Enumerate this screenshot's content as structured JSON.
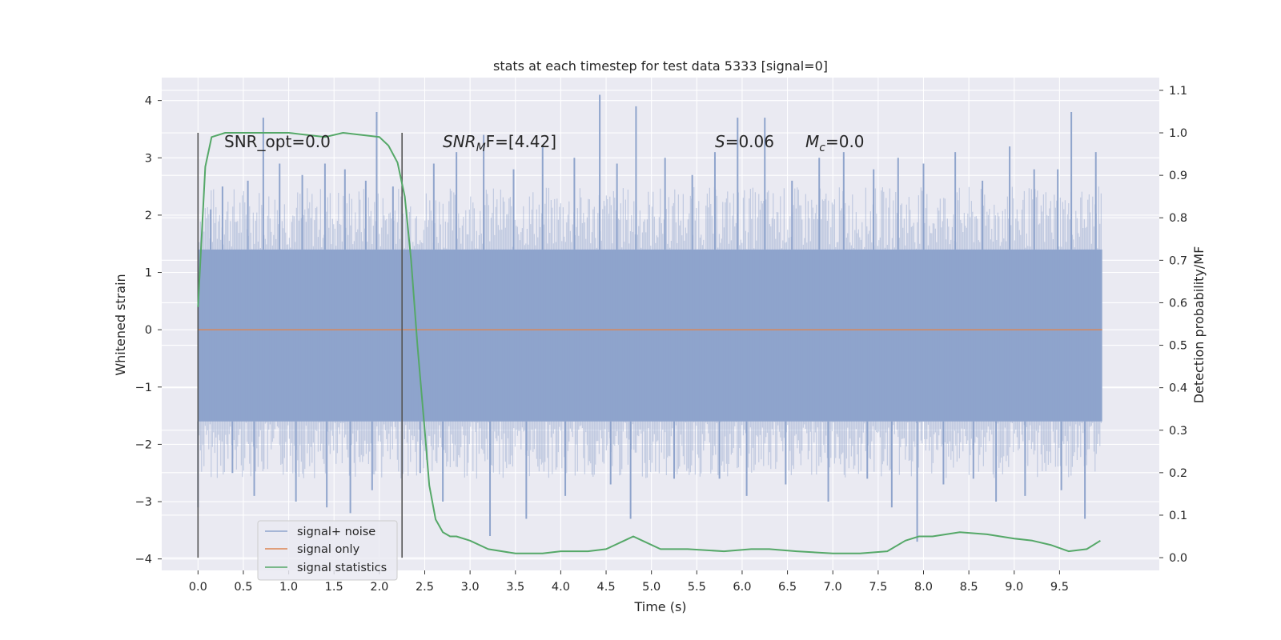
{
  "chart_data": {
    "type": "line",
    "title": "stats at each timestep for test data 5333 [signal=0]",
    "xlabel": "Time (s)",
    "ylabel": "Whitened strain",
    "y2label": "Detection probability/MF",
    "xlim": [
      -0.4,
      10.6
    ],
    "ylim": [
      -4.2,
      4.4
    ],
    "y2lim": [
      -0.03,
      1.13
    ],
    "x_ticks": [
      "0.0",
      "0.5",
      "1.0",
      "1.5",
      "2.0",
      "2.5",
      "3.0",
      "3.5",
      "4.0",
      "4.5",
      "5.0",
      "5.5",
      "6.0",
      "6.5",
      "7.0",
      "7.5",
      "8.0",
      "8.5",
      "9.0",
      "9.5"
    ],
    "y_ticks": [
      "4",
      "3",
      "2",
      "1",
      "0",
      "−1",
      "−2",
      "−3",
      "−4"
    ],
    "y2_ticks": [
      "1.1",
      "1.0",
      "0.9",
      "0.8",
      "0.7",
      "0.6",
      "0.5",
      "0.4",
      "0.3",
      "0.2",
      "0.1",
      "0.0"
    ],
    "grid": true,
    "background": "#eaeaf2",
    "legend_position": "lower-left",
    "annotations": {
      "snr_opt": "SNR_opt=0.0",
      "snr_mf_main": "SNR",
      "snr_mf_sub": "M",
      "snr_mf_rest": "F=[4.42]",
      "s_var": "S",
      "s_value": "=0.06",
      "mc_main": "M",
      "mc_sub": "c",
      "mc_value": "=0.0"
    },
    "vertical_markers_x": [
      0.0,
      2.25
    ],
    "series": [
      {
        "name": "signal+ noise",
        "color": "#8fa4cc",
        "axis": "left",
        "kind": "noise-band",
        "x_range": [
          0.0,
          9.97
        ],
        "band_low": -1.6,
        "band_high": 1.4,
        "spikes": [
          {
            "x": 0.14,
            "y": 2.1
          },
          {
            "x": 0.27,
            "y": 2.5
          },
          {
            "x": 0.55,
            "y": 2.6
          },
          {
            "x": 0.72,
            "y": 3.7
          },
          {
            "x": 0.9,
            "y": 2.9
          },
          {
            "x": 1.15,
            "y": 2.7
          },
          {
            "x": 1.4,
            "y": 2.9
          },
          {
            "x": 1.62,
            "y": 2.8
          },
          {
            "x": 1.85,
            "y": 2.6
          },
          {
            "x": 1.97,
            "y": 3.8
          },
          {
            "x": 2.15,
            "y": 2.5
          },
          {
            "x": 2.6,
            "y": 2.9
          },
          {
            "x": 2.85,
            "y": 3.1
          },
          {
            "x": 3.15,
            "y": 3.4
          },
          {
            "x": 3.48,
            "y": 2.8
          },
          {
            "x": 3.8,
            "y": 3.2
          },
          {
            "x": 4.15,
            "y": 3.0
          },
          {
            "x": 4.43,
            "y": 4.1
          },
          {
            "x": 4.62,
            "y": 2.9
          },
          {
            "x": 4.83,
            "y": 3.9
          },
          {
            "x": 5.15,
            "y": 3.0
          },
          {
            "x": 5.45,
            "y": 2.7
          },
          {
            "x": 5.7,
            "y": 3.1
          },
          {
            "x": 5.95,
            "y": 3.7
          },
          {
            "x": 6.25,
            "y": 3.7
          },
          {
            "x": 6.55,
            "y": 2.6
          },
          {
            "x": 6.85,
            "y": 3.0
          },
          {
            "x": 7.12,
            "y": 3.1
          },
          {
            "x": 7.45,
            "y": 2.8
          },
          {
            "x": 7.72,
            "y": 3.0
          },
          {
            "x": 8.0,
            "y": 2.9
          },
          {
            "x": 8.35,
            "y": 3.1
          },
          {
            "x": 8.65,
            "y": 2.6
          },
          {
            "x": 8.95,
            "y": 3.2
          },
          {
            "x": 9.22,
            "y": 2.8
          },
          {
            "x": 9.48,
            "y": 2.8
          },
          {
            "x": 9.63,
            "y": 3.8
          },
          {
            "x": 9.9,
            "y": 3.1
          },
          {
            "x": 0.0,
            "y": -3.1
          },
          {
            "x": 0.38,
            "y": -2.5
          },
          {
            "x": 0.62,
            "y": -2.9
          },
          {
            "x": 1.08,
            "y": -3.0
          },
          {
            "x": 1.42,
            "y": -3.1
          },
          {
            "x": 1.68,
            "y": -3.2
          },
          {
            "x": 1.92,
            "y": -2.8
          },
          {
            "x": 2.45,
            "y": -2.5
          },
          {
            "x": 2.7,
            "y": -3.0
          },
          {
            "x": 3.22,
            "y": -3.6
          },
          {
            "x": 3.62,
            "y": -3.3
          },
          {
            "x": 4.05,
            "y": -2.9
          },
          {
            "x": 4.55,
            "y": -2.7
          },
          {
            "x": 4.77,
            "y": -3.3
          },
          {
            "x": 5.25,
            "y": -2.6
          },
          {
            "x": 5.75,
            "y": -2.6
          },
          {
            "x": 6.05,
            "y": -2.9
          },
          {
            "x": 6.48,
            "y": -2.7
          },
          {
            "x": 6.95,
            "y": -3.0
          },
          {
            "x": 7.38,
            "y": -2.6
          },
          {
            "x": 7.65,
            "y": -3.1
          },
          {
            "x": 7.93,
            "y": -3.7
          },
          {
            "x": 8.22,
            "y": -2.7
          },
          {
            "x": 8.55,
            "y": -2.6
          },
          {
            "x": 8.8,
            "y": -3.0
          },
          {
            "x": 9.12,
            "y": -2.9
          },
          {
            "x": 9.52,
            "y": -2.8
          },
          {
            "x": 9.78,
            "y": -3.3
          }
        ]
      },
      {
        "name": "signal only",
        "color": "#dd8452",
        "axis": "left",
        "x": [
          0.0,
          9.97
        ],
        "y": [
          0.0,
          0.0
        ]
      },
      {
        "name": "signal statistics",
        "color": "#55a868",
        "axis": "right",
        "x": [
          0.0,
          0.08,
          0.15,
          0.3,
          0.5,
          1.0,
          1.4,
          1.6,
          2.0,
          2.1,
          2.2,
          2.28,
          2.35,
          2.42,
          2.5,
          2.55,
          2.62,
          2.7,
          2.78,
          2.85,
          3.0,
          3.2,
          3.5,
          3.8,
          4.0,
          4.3,
          4.5,
          4.7,
          4.8,
          4.9,
          5.1,
          5.4,
          5.8,
          6.1,
          6.3,
          6.6,
          7.0,
          7.3,
          7.6,
          7.8,
          7.95,
          8.1,
          8.4,
          8.7,
          9.0,
          9.2,
          9.4,
          9.6,
          9.8,
          9.95
        ],
        "y": [
          0.59,
          0.92,
          0.99,
          1.0,
          1.0,
          1.0,
          0.99,
          1.0,
          0.99,
          0.97,
          0.93,
          0.85,
          0.7,
          0.5,
          0.3,
          0.17,
          0.09,
          0.06,
          0.05,
          0.05,
          0.04,
          0.02,
          0.01,
          0.01,
          0.015,
          0.015,
          0.02,
          0.04,
          0.05,
          0.04,
          0.02,
          0.02,
          0.015,
          0.02,
          0.02,
          0.015,
          0.01,
          0.01,
          0.015,
          0.04,
          0.05,
          0.05,
          0.06,
          0.055,
          0.045,
          0.04,
          0.03,
          0.015,
          0.02,
          0.04
        ]
      }
    ]
  }
}
